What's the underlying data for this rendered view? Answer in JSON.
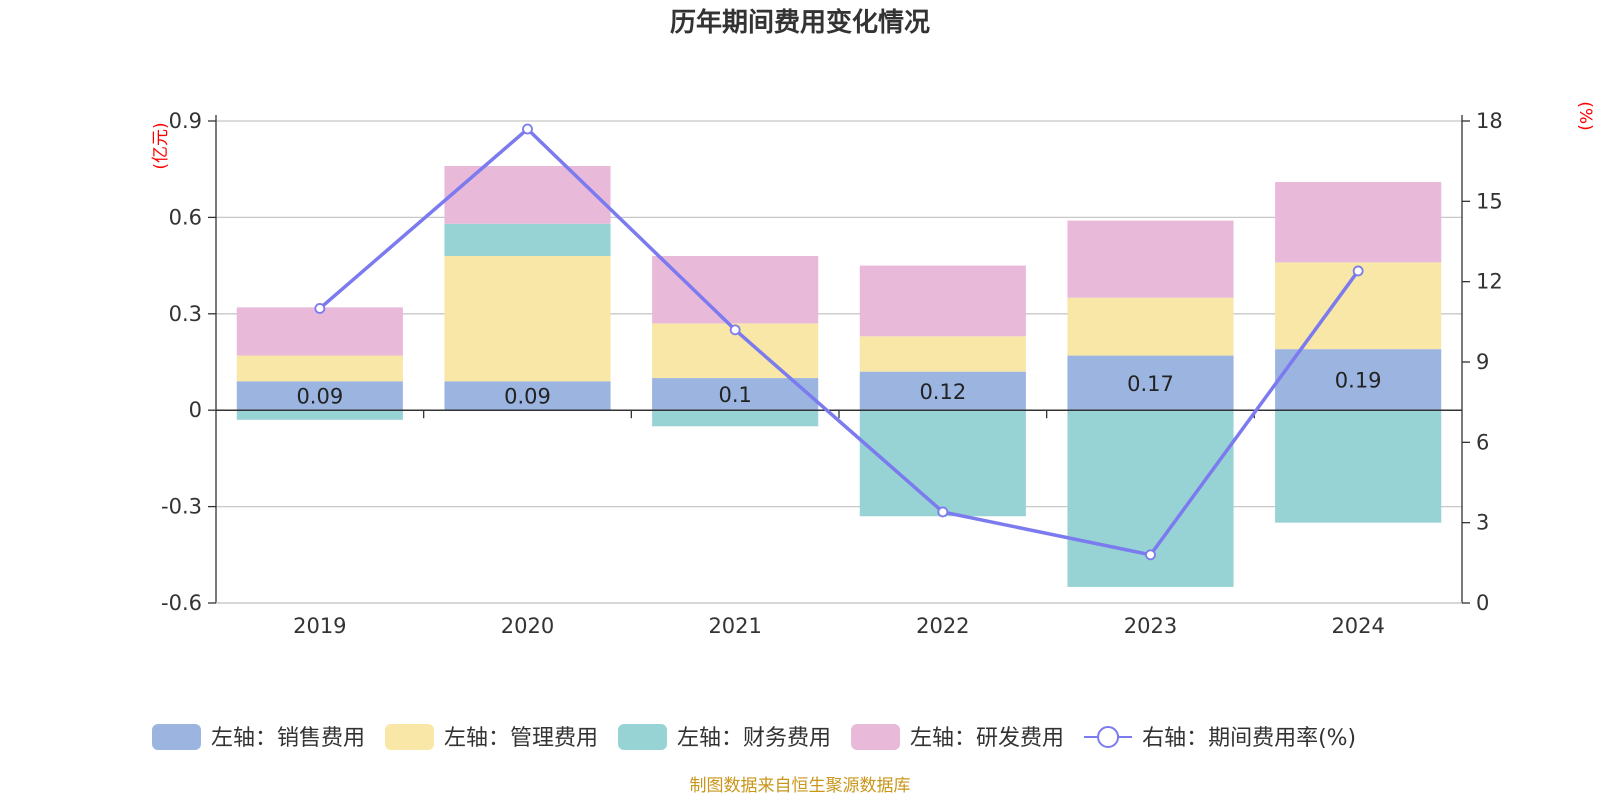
{
  "chart_data": {
    "type": "bar",
    "title": "历年期间费用变化情况",
    "categories": [
      "2019",
      "2020",
      "2021",
      "2022",
      "2023",
      "2024"
    ],
    "y_left": {
      "unit": "(亿元)",
      "ylim": [
        -0.6,
        0.9
      ],
      "ticks": [
        0.9,
        0.6,
        0.3,
        0,
        -0.3,
        -0.6
      ],
      "tick_labels": [
        "0.9",
        "0.6",
        "0.3",
        "0",
        "-0.3",
        "-0.6"
      ]
    },
    "y_right": {
      "unit": "(%)",
      "ylim": [
        0,
        18
      ],
      "ticks": [
        18,
        15,
        12,
        9,
        6,
        3,
        0
      ],
      "tick_labels": [
        "18",
        "15",
        "12",
        "9",
        "6",
        "3",
        "0"
      ]
    },
    "series": [
      {
        "name": "左轴：销售费用",
        "axis": "left",
        "color": "#9bb5e0",
        "values": [
          0.09,
          0.09,
          0.1,
          0.12,
          0.17,
          0.19
        ],
        "labels": [
          "0.09",
          "0.09",
          "0.1",
          "0.12",
          "0.17",
          "0.19"
        ]
      },
      {
        "name": "左轴：管理费用",
        "axis": "left",
        "color": "#f8e7a6",
        "values": [
          0.08,
          0.39,
          0.17,
          0.11,
          0.18,
          0.27
        ]
      },
      {
        "name": "左轴：财务费用",
        "axis": "left",
        "color": "#97d3d4",
        "values": [
          -0.03,
          0.1,
          -0.05,
          -0.33,
          -0.55,
          -0.35
        ]
      },
      {
        "name": "左轴：研发费用",
        "axis": "left",
        "color": "#e8b9d9",
        "values": [
          0.15,
          0.18,
          0.21,
          0.22,
          0.24,
          0.25
        ]
      },
      {
        "name": "右轴：期间费用率(%)",
        "axis": "right",
        "type": "line",
        "color": "#7b7bef",
        "values": [
          11.0,
          17.7,
          10.2,
          3.4,
          1.8,
          12.4
        ]
      }
    ],
    "legend_position": "bottom",
    "grid": true,
    "source": "制图数据来自恒生聚源数据库"
  }
}
